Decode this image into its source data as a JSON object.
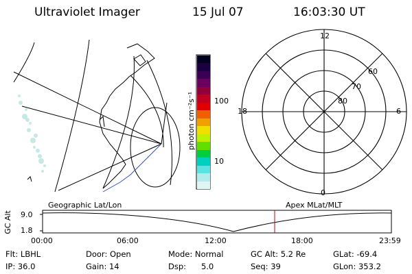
{
  "header": {
    "instrument": "Ultraviolet Imager",
    "date": "15 Jul 07",
    "time": "16:03:30 UT"
  },
  "colorbar": {
    "unit_label": "photon cm⁻²s⁻¹",
    "ticks": [
      "100",
      "10"
    ],
    "colors": [
      "#000020",
      "#1a0040",
      "#3a0055",
      "#6a0060",
      "#90003a",
      "#c00020",
      "#e00000",
      "#f06000",
      "#f0a000",
      "#f0e000",
      "#c0f000",
      "#60e000",
      "#00d040",
      "#00d0c0",
      "#60e0e0",
      "#b0ecec",
      "#e0f4f4"
    ]
  },
  "left_map": {
    "label": "Geographic Lat/Lon"
  },
  "polar_map": {
    "label": "Apex MLat/MLT",
    "mlt_labels": {
      "top": "12",
      "right": "6",
      "bottom": "0",
      "left": "18"
    },
    "lat_labels": [
      "60",
      "70",
      "80"
    ]
  },
  "altitude_plot": {
    "ylabel": "GC Alt",
    "y_ticks": [
      "9.0",
      "1.8"
    ],
    "x_ticks": [
      "00:00",
      "06:00",
      "12:00",
      "18:00",
      "23:59"
    ],
    "current_time_color": "#c00000"
  },
  "info": {
    "flt": "Flt: LBHL",
    "ip": "IP: 36.0",
    "door": "Door: Open",
    "gain": "Gain: 14",
    "mode": "Mode: Normal",
    "dsp": "Dsp:      5.0",
    "gcalt": "GC Alt: 5.2 Re",
    "seq": "Seq: 39",
    "glat": "GLat: -69.4",
    "glon": "GLon: 353.2"
  }
}
